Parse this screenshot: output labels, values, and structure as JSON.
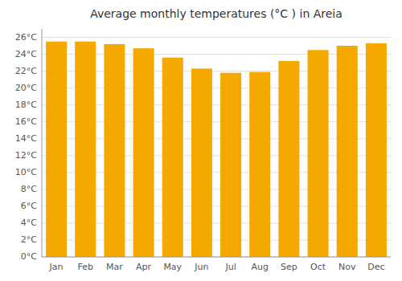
{
  "chart_data": {
    "type": "bar",
    "title": "Average monthly temperatures (°C ) in Areia",
    "categories": [
      "Jan",
      "Feb",
      "Mar",
      "Apr",
      "May",
      "Jun",
      "Jul",
      "Aug",
      "Sep",
      "Oct",
      "Nov",
      "Dec"
    ],
    "values": [
      25.5,
      25.5,
      25.2,
      24.7,
      23.6,
      22.3,
      21.8,
      21.9,
      23.2,
      24.5,
      25.0,
      25.3
    ],
    "color": "#F5A800",
    "ylim": [
      0,
      27
    ],
    "yticks": [
      {
        "value": 0,
        "label": "0°C"
      },
      {
        "value": 2,
        "label": "2°C"
      },
      {
        "value": 4,
        "label": "4°C"
      },
      {
        "value": 6,
        "label": "6°C"
      },
      {
        "value": 8,
        "label": "8°C"
      },
      {
        "value": 10,
        "label": "10°C"
      },
      {
        "value": 12,
        "label": "12°C"
      },
      {
        "value": 14,
        "label": "14°C"
      },
      {
        "value": 16,
        "label": "16°C"
      },
      {
        "value": 18,
        "label": "18°C"
      },
      {
        "value": 20,
        "label": "20°C"
      },
      {
        "value": 22,
        "label": "22°C"
      },
      {
        "value": 24,
        "label": "24°C"
      },
      {
        "value": 26,
        "label": "26°C"
      }
    ],
    "grid": true
  }
}
